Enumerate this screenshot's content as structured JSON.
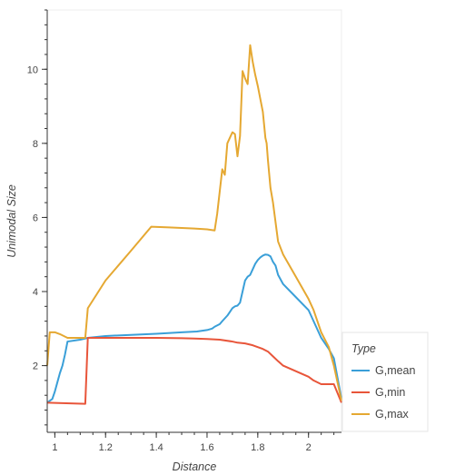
{
  "chart_data": {
    "type": "line",
    "title": "",
    "xlabel": "Distance",
    "ylabel": "Unimodal Size",
    "xlim": [
      0.97,
      2.13
    ],
    "ylim": [
      0.2,
      11.6
    ],
    "x_ticks": [
      1,
      1.2,
      1.4,
      1.6,
      1.8,
      2
    ],
    "x_tick_labels": [
      "1",
      "1.2",
      "1.4",
      "1.6",
      "1.8",
      "2"
    ],
    "y_ticks": [
      2,
      4,
      6,
      8,
      10
    ],
    "y_tick_labels": [
      "2",
      "4",
      "6",
      "8",
      "10"
    ],
    "grid": false,
    "legend": {
      "title": "Type",
      "position": "bottom-right-outside"
    },
    "series": [
      {
        "name": "G,mean",
        "color": "#3a9fd8",
        "x": [
          0.97,
          0.98,
          0.99,
          1.0,
          1.01,
          1.02,
          1.03,
          1.04,
          1.05,
          1.1,
          1.13,
          1.2,
          1.3,
          1.4,
          1.5,
          1.56,
          1.6,
          1.62,
          1.63,
          1.65,
          1.66,
          1.68,
          1.7,
          1.71,
          1.72,
          1.73,
          1.74,
          1.75,
          1.76,
          1.77,
          1.78,
          1.79,
          1.8,
          1.81,
          1.82,
          1.83,
          1.84,
          1.85,
          1.86,
          1.87,
          1.88,
          1.9,
          1.95,
          2.0,
          2.02,
          2.05,
          2.08,
          2.1,
          2.13
        ],
        "y": [
          1.0,
          1.05,
          1.1,
          1.3,
          1.55,
          1.8,
          2.0,
          2.3,
          2.65,
          2.7,
          2.75,
          2.8,
          2.83,
          2.86,
          2.9,
          2.92,
          2.96,
          3.0,
          3.05,
          3.12,
          3.2,
          3.35,
          3.55,
          3.6,
          3.62,
          3.7,
          4.0,
          4.3,
          4.4,
          4.45,
          4.6,
          4.75,
          4.85,
          4.92,
          4.97,
          5.0,
          4.99,
          4.95,
          4.8,
          4.7,
          4.45,
          4.2,
          3.85,
          3.5,
          3.2,
          2.75,
          2.45,
          2.2,
          1.1
        ]
      },
      {
        "name": "G,min",
        "color": "#e8553a",
        "x": [
          0.97,
          1.12,
          1.13,
          1.2,
          1.3,
          1.4,
          1.5,
          1.55,
          1.6,
          1.65,
          1.7,
          1.72,
          1.75,
          1.78,
          1.8,
          1.82,
          1.84,
          1.86,
          1.88,
          1.9,
          1.95,
          2.0,
          2.02,
          2.05,
          2.08,
          2.1,
          2.13
        ],
        "y": [
          1.0,
          0.97,
          2.75,
          2.75,
          2.75,
          2.75,
          2.74,
          2.73,
          2.72,
          2.7,
          2.65,
          2.62,
          2.6,
          2.55,
          2.5,
          2.45,
          2.38,
          2.25,
          2.12,
          2.0,
          1.85,
          1.7,
          1.6,
          1.5,
          1.5,
          1.5,
          1.0
        ]
      },
      {
        "name": "G,max",
        "color": "#e5a832",
        "x": [
          0.97,
          0.98,
          1.0,
          1.02,
          1.05,
          1.1,
          1.12,
          1.13,
          1.2,
          1.3,
          1.38,
          1.45,
          1.55,
          1.6,
          1.63,
          1.64,
          1.65,
          1.66,
          1.67,
          1.68,
          1.69,
          1.7,
          1.71,
          1.72,
          1.73,
          1.74,
          1.745,
          1.75,
          1.76,
          1.77,
          1.78,
          1.79,
          1.8,
          1.81,
          1.82,
          1.83,
          1.835,
          1.84,
          1.85,
          1.86,
          1.88,
          1.9,
          1.95,
          2.0,
          2.02,
          2.05,
          2.08,
          2.1,
          2.13
        ],
        "y": [
          2.0,
          2.9,
          2.9,
          2.85,
          2.75,
          2.75,
          2.75,
          3.55,
          4.3,
          5.1,
          5.75,
          5.73,
          5.7,
          5.68,
          5.65,
          6.1,
          6.7,
          7.3,
          7.15,
          8.0,
          8.15,
          8.3,
          8.25,
          7.65,
          8.2,
          9.95,
          9.85,
          9.75,
          9.6,
          10.65,
          10.2,
          9.85,
          9.55,
          9.2,
          8.85,
          8.15,
          8.0,
          7.55,
          6.8,
          6.4,
          5.35,
          5.0,
          4.4,
          3.8,
          3.5,
          2.9,
          2.5,
          2.0,
          1.05
        ]
      }
    ]
  }
}
